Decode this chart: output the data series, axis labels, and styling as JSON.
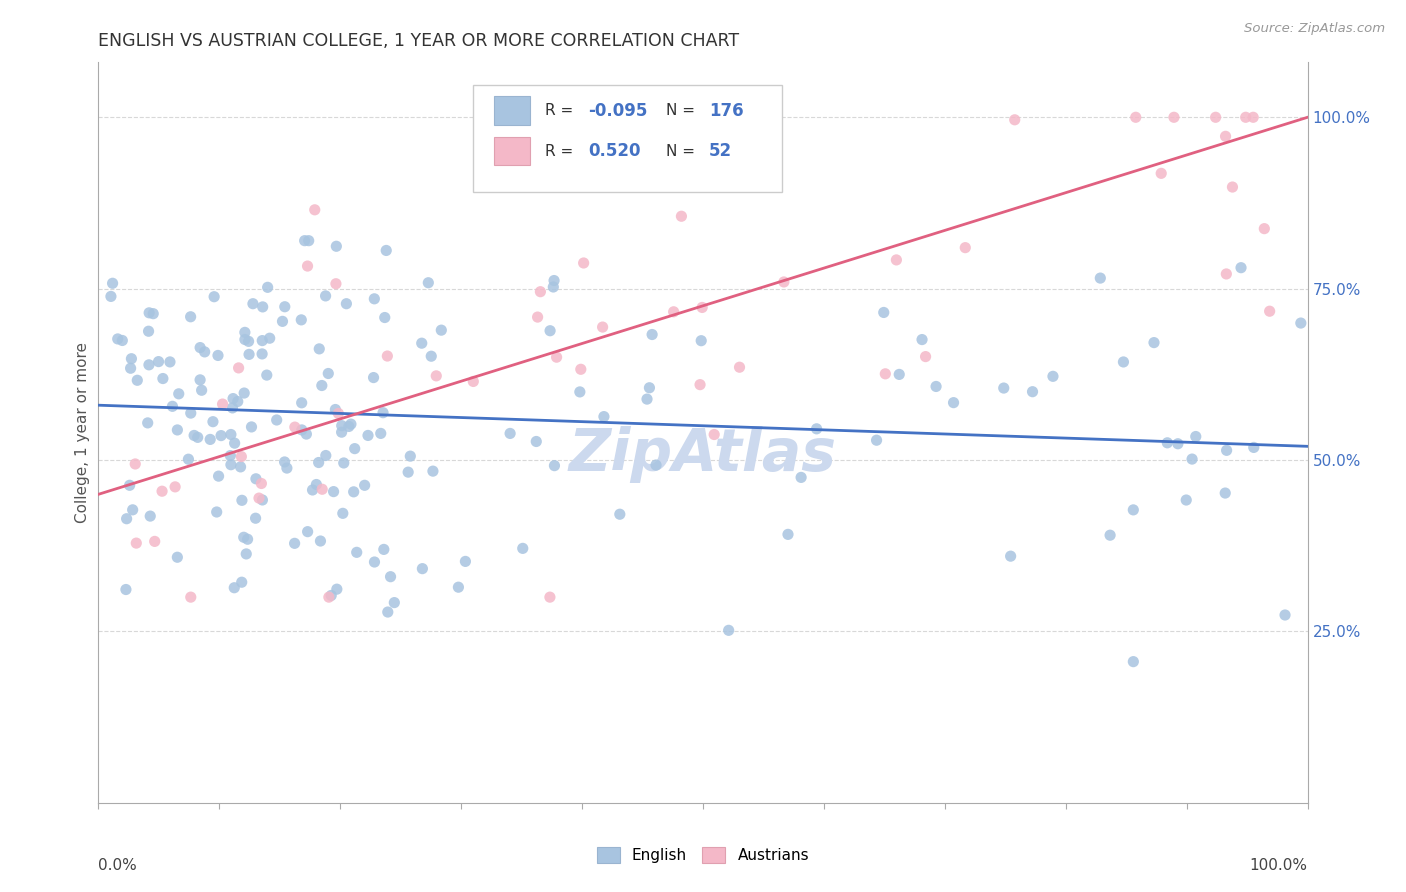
{
  "title": "ENGLISH VS AUSTRIAN COLLEGE, 1 YEAR OR MORE CORRELATION CHART",
  "source_text": "Source: ZipAtlas.com",
  "ylabel": "College, 1 year or more",
  "legend_labels": [
    "English",
    "Austrians"
  ],
  "english_R": -0.095,
  "english_N": 176,
  "austrian_R": 0.52,
  "austrian_N": 52,
  "english_color": "#a8c4e0",
  "austrian_color": "#f4b8c8",
  "english_line_color": "#4472c4",
  "austrian_line_color": "#e06080",
  "watermark_color": "#ccd9ee",
  "background_color": "#ffffff",
  "right_tick_color": "#4472c4",
  "grid_color": "#d8d8d8",
  "spine_color": "#aaaaaa",
  "title_color": "#333333",
  "source_color": "#999999",
  "ylabel_color": "#555555"
}
